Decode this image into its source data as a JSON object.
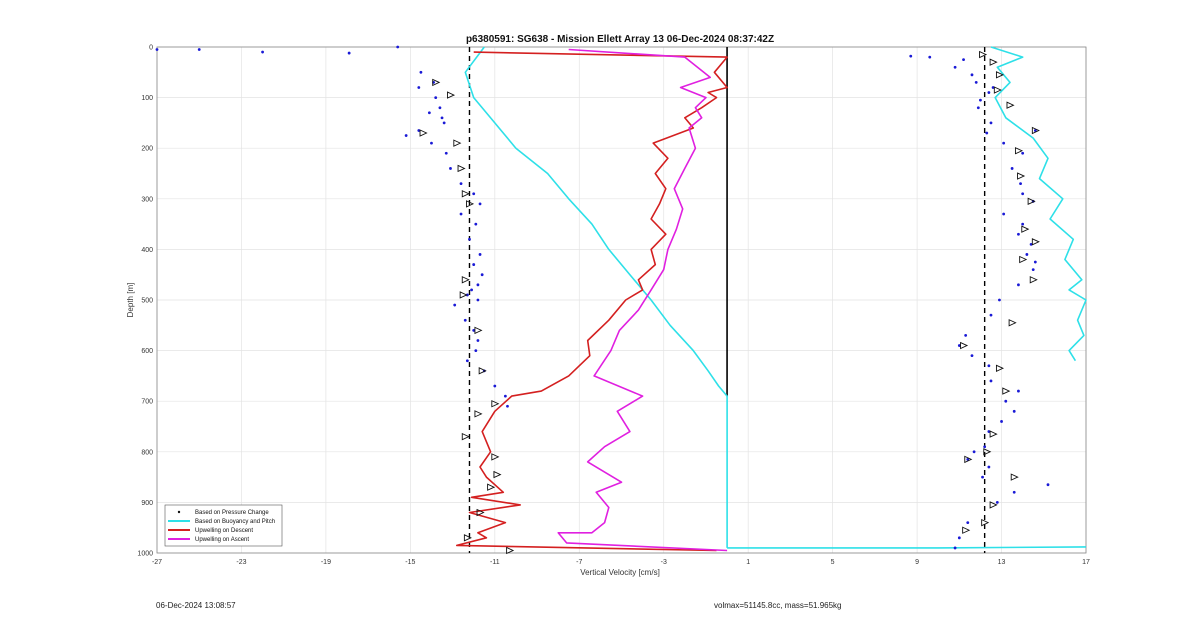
{
  "footer": {
    "timestamp": "06-Dec-2024 13:08:57",
    "info": "volmax=51145.8cc, mass=51.965kg"
  },
  "chart_data": {
    "type": "line",
    "title": "p6380591: SG638 - Mission Ellett Array 13 06-Dec-2024 08:37:42Z",
    "xlabel": "Vertical Velocity [cm/s]",
    "ylabel": "Depth [m]",
    "xlim": [
      -27,
      17
    ],
    "ylim": [
      0,
      1000
    ],
    "y_reversed": true,
    "xticks": [
      -27,
      -23,
      -19,
      -15,
      -11,
      -7,
      -3,
      1,
      5,
      9,
      13,
      17
    ],
    "yticks": [
      0,
      100,
      200,
      300,
      400,
      500,
      600,
      700,
      800,
      900,
      1000
    ],
    "grid": true,
    "legend_position": "bottom-left",
    "reference_lines": [
      {
        "style": "dashed",
        "x": -12.2,
        "color": "#000000"
      },
      {
        "style": "dashed",
        "x": 12.2,
        "color": "#000000"
      },
      {
        "style": "solid",
        "x": 0,
        "color": "#000000",
        "y_end": 690
      }
    ],
    "series": [
      {
        "name": "Based on Pressure Change",
        "color": "#1a1ad6",
        "marker": "dot",
        "segments": [
          {
            "x": [
              -27.0,
              -25.0,
              -22.0,
              -17.9,
              -15.6,
              -14.5,
              -13.9,
              -14.6,
              -13.8,
              -13.6,
              -14.1,
              -13.5,
              -13.4,
              -14.6,
              -15.2,
              -14.0,
              -13.3,
              -13.1,
              -12.6,
              -12.0,
              -11.7,
              -12.6,
              -11.9,
              -12.2,
              -11.7,
              -12.0,
              -11.6,
              -11.8,
              -12.1,
              -12.3,
              -11.8,
              -12.9,
              -12.4,
              -12.0,
              -11.8,
              -11.9,
              -12.3,
              -11.5,
              -11.0,
              -10.5,
              -10.4
            ],
            "y": [
              5,
              5,
              10,
              12,
              0,
              50,
              70,
              80,
              100,
              120,
              130,
              140,
              150,
              165,
              175,
              190,
              210,
              240,
              270,
              290,
              310,
              330,
              350,
              380,
              410,
              430,
              450,
              470,
              480,
              490,
              500,
              510,
              540,
              560,
              580,
              600,
              620,
              640,
              670,
              690,
              710
            ]
          },
          {
            "x": [
              8.7,
              9.6,
              11.2,
              10.8,
              11.6,
              11.8,
              12.6,
              12.4,
              12.0,
              11.9,
              12.5,
              12.3,
              13.1,
              14.6,
              14.0,
              13.5,
              13.9,
              14.0,
              14.5,
              13.1,
              14.0,
              13.8,
              14.4,
              14.2,
              14.6,
              14.5,
              13.8,
              12.9,
              12.5,
              11.3,
              11.0,
              11.6,
              12.4,
              12.5,
              13.8,
              13.2,
              13.6,
              13.0,
              12.4,
              12.2,
              11.7,
              11.4,
              12.4,
              12.1,
              13.6,
              15.2,
              12.8,
              11.4,
              11.0,
              10.8
            ],
            "y": [
              18,
              20,
              25,
              40,
              55,
              70,
              80,
              90,
              105,
              120,
              150,
              170,
              190,
              165,
              210,
              240,
              270,
              290,
              305,
              330,
              350,
              370,
              390,
              410,
              425,
              440,
              470,
              500,
              530,
              570,
              590,
              610,
              630,
              660,
              680,
              700,
              720,
              740,
              760,
              790,
              800,
              815,
              830,
              850,
              880,
              865,
              900,
              940,
              970,
              990
            ]
          }
        ]
      },
      {
        "name": "Based on Buoyancy and Pitch",
        "color": "#2ee0e8",
        "segments": [
          {
            "x": [
              -11.5,
              -12.4,
              -12.0,
              -11.0,
              -10.0,
              -8.5,
              -7.5,
              -6.4,
              -5.6,
              -4.6,
              -3.6,
              -2.7,
              -1.6,
              -0.9,
              -0.4,
              0.0,
              0.0
            ],
            "y": [
              0,
              50,
              100,
              150,
              200,
              250,
              300,
              350,
              400,
              450,
              500,
              550,
              600,
              640,
              670,
              690,
              990
            ]
          },
          {
            "x": [
              0.0,
              5.0,
              10.0,
              17.0
            ],
            "y": [
              990,
              990,
              990,
              988
            ]
          },
          {
            "x": [
              12.5,
              14.0,
              12.8,
              13.4,
              12.7,
              13.2,
              14.5,
              15.2,
              14.8,
              15.9,
              15.3,
              16.4,
              16.0,
              16.8,
              16.2,
              17.0,
              16.6,
              16.9,
              16.2,
              16.5
            ],
            "y": [
              0,
              20,
              40,
              70,
              100,
              140,
              180,
              220,
              260,
              300,
              340,
              380,
              420,
              460,
              480,
              500,
              540,
              570,
              600,
              620
            ]
          }
        ]
      },
      {
        "name": "Upwelling on Descent",
        "color": "#d42020",
        "segments": [
          {
            "x": [
              -12.0,
              0.0,
              -0.6,
              0.0,
              -0.9,
              -0.5,
              -1.2,
              -2.0,
              -1.6,
              -3.5,
              -2.8,
              -3.4,
              -2.9,
              -3.2,
              -3.6,
              -2.9,
              -3.6,
              -3.4,
              -4.2,
              -4.0,
              -4.8,
              -5.6,
              -6.6,
              -6.5,
              -7.5,
              -8.8,
              -10.2,
              -11.0,
              -11.6,
              -11.2,
              -11.7,
              -11.4,
              -10.6,
              -12.1,
              -9.8,
              -12.2,
              -10.5,
              -11.8,
              -11.4,
              -12.8,
              -0.5
            ],
            "y": [
              10,
              20,
              50,
              80,
              90,
              100,
              120,
              140,
              160,
              190,
              220,
              250,
              280,
              310,
              340,
              370,
              400,
              430,
              460,
              480,
              500,
              540,
              580,
              610,
              650,
              680,
              690,
              720,
              760,
              800,
              830,
              850,
              880,
              890,
              905,
              920,
              940,
              960,
              970,
              985,
              995
            ]
          }
        ]
      },
      {
        "name": "Upwelling on Ascent",
        "color": "#e020e0",
        "segments": [
          {
            "x": [
              -7.5,
              -2.0,
              -0.8,
              -2.2,
              -1.0,
              -1.5,
              -1.2,
              -1.8,
              -1.5,
              -2.0,
              -2.5,
              -2.1,
              -2.4,
              -2.8,
              -3.0,
              -3.6,
              -4.2,
              -5.1,
              -5.5,
              -6.3,
              -4.0,
              -5.2,
              -4.6,
              -5.8,
              -6.6,
              -5.0,
              -6.2,
              -5.6,
              -5.8,
              -6.4,
              -8.0,
              -7.6,
              0.0
            ],
            "y": [
              5,
              20,
              60,
              80,
              100,
              120,
              140,
              160,
              200,
              240,
              280,
              320,
              360,
              400,
              440,
              480,
              520,
              560,
              600,
              650,
              690,
              720,
              760,
              790,
              820,
              860,
              880,
              910,
              940,
              960,
              960,
              980,
              995
            ]
          }
        ]
      }
    ],
    "markers": {
      "style": "triangle",
      "points": [
        [
          -13.8,
          70
        ],
        [
          -13.1,
          95
        ],
        [
          -14.4,
          170
        ],
        [
          -12.8,
          190
        ],
        [
          -12.6,
          240
        ],
        [
          -12.4,
          290
        ],
        [
          -12.2,
          310
        ],
        [
          -12.4,
          460
        ],
        [
          -12.5,
          490
        ],
        [
          -11.8,
          560
        ],
        [
          -11.6,
          640
        ],
        [
          -11.0,
          705
        ],
        [
          -11.8,
          725
        ],
        [
          -12.4,
          770
        ],
        [
          -11.0,
          810
        ],
        [
          -10.9,
          845
        ],
        [
          -11.2,
          870
        ],
        [
          -11.7,
          920
        ],
        [
          -12.3,
          970
        ],
        [
          -10.3,
          995
        ],
        [
          12.1,
          15
        ],
        [
          12.6,
          30
        ],
        [
          12.9,
          55
        ],
        [
          12.8,
          85
        ],
        [
          13.4,
          115
        ],
        [
          14.6,
          165
        ],
        [
          13.8,
          205
        ],
        [
          13.9,
          255
        ],
        [
          14.4,
          305
        ],
        [
          14.1,
          360
        ],
        [
          14.6,
          385
        ],
        [
          14.0,
          420
        ],
        [
          14.5,
          460
        ],
        [
          13.5,
          545
        ],
        [
          11.2,
          590
        ],
        [
          12.9,
          635
        ],
        [
          13.2,
          680
        ],
        [
          12.6,
          765
        ],
        [
          12.3,
          800
        ],
        [
          11.4,
          815
        ],
        [
          13.6,
          850
        ],
        [
          12.6,
          905
        ],
        [
          12.2,
          940
        ],
        [
          11.3,
          955
        ]
      ]
    }
  }
}
